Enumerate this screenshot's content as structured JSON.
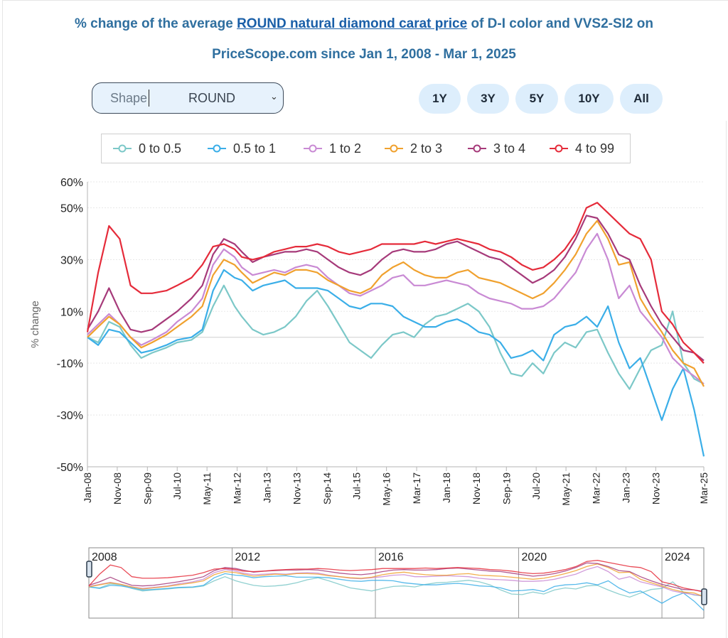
{
  "title": {
    "prefix": "% change of the average ",
    "link": "ROUND natural diamond carat price",
    "suffix": " of D-I color and VVS2-SI2 on",
    "line2": "PriceScope.com since Jan 1, 2008 - Mar 1, 2025"
  },
  "shape_select": {
    "label": "Shape",
    "value": "ROUND"
  },
  "range_buttons": [
    "1Y",
    "3Y",
    "5Y",
    "10Y",
    "All"
  ],
  "colors": {
    "series": [
      "#7cc8c8",
      "#3aaee8",
      "#c98ad4",
      "#f0a12e",
      "#a63a7a",
      "#e52b3a"
    ],
    "accent": "#2f6f9f"
  },
  "chart_data": {
    "type": "line",
    "title": "% change of the average ROUND natural diamond carat price of D-I color and VVS2-SI2 on PriceScope.com since Jan 1, 2008 - Mar 1, 2025",
    "ylabel": "% change",
    "xlabel": "",
    "ylim": [
      -50,
      60
    ],
    "xlim": [
      2008.0,
      2025.17
    ],
    "y_ticks": [
      60,
      50,
      30,
      10,
      -10,
      -30,
      -50
    ],
    "y_tick_labels": [
      "60%",
      "50%",
      "30%",
      "10%",
      "-10%",
      "-30%",
      "-50%"
    ],
    "x_ticks": [
      {
        "label": "Jan-08",
        "x": 2008.0
      },
      {
        "label": "Nov-08",
        "x": 2008.83
      },
      {
        "label": "Sep-09",
        "x": 2009.67
      },
      {
        "label": "Jul-10",
        "x": 2010.5
      },
      {
        "label": "May-11",
        "x": 2011.33
      },
      {
        "label": "Mar-12",
        "x": 2012.17
      },
      {
        "label": "Jan-13",
        "x": 2013.0
      },
      {
        "label": "Nov-13",
        "x": 2013.83
      },
      {
        "label": "Sep-14",
        "x": 2014.67
      },
      {
        "label": "Jul-15",
        "x": 2015.5
      },
      {
        "label": "May-16",
        "x": 2016.33
      },
      {
        "label": "Mar-17",
        "x": 2017.17
      },
      {
        "label": "Jan-18",
        "x": 2018.0
      },
      {
        "label": "Nov-18",
        "x": 2018.83
      },
      {
        "label": "Sep-19",
        "x": 2019.67
      },
      {
        "label": "Jul-20",
        "x": 2020.5
      },
      {
        "label": "May-21",
        "x": 2021.33
      },
      {
        "label": "Mar-22",
        "x": 2022.17
      },
      {
        "label": "Jan-23",
        "x": 2023.0
      },
      {
        "label": "Nov-23",
        "x": 2023.83
      },
      {
        "label": "Mar-25",
        "x": 2025.17
      }
    ],
    "legend_position": "top",
    "navigator_labels": [
      "2008",
      "2012",
      "2016",
      "2020",
      "2024"
    ],
    "navigator_years": [
      2008,
      2012,
      2016,
      2020,
      2024
    ],
    "series": [
      {
        "name": "0 to 0.5",
        "x": [
          2008.0,
          2008.3,
          2008.6,
          2008.9,
          2009.2,
          2009.5,
          2009.8,
          2010.2,
          2010.5,
          2010.9,
          2011.2,
          2011.5,
          2011.8,
          2012.1,
          2012.3,
          2012.6,
          2012.9,
          2013.2,
          2013.5,
          2013.8,
          2014.1,
          2014.4,
          2014.7,
          2015.0,
          2015.3,
          2015.6,
          2015.9,
          2016.2,
          2016.5,
          2016.8,
          2017.1,
          2017.4,
          2017.7,
          2018.0,
          2018.3,
          2018.6,
          2018.9,
          2019.2,
          2019.5,
          2019.8,
          2020.1,
          2020.4,
          2020.7,
          2021.0,
          2021.3,
          2021.6,
          2021.9,
          2022.2,
          2022.5,
          2022.8,
          2023.1,
          2023.4,
          2023.7,
          2024.0,
          2024.3,
          2024.6,
          2024.9,
          2025.17
        ],
        "values": [
          0,
          -2,
          6,
          4,
          -3,
          -8,
          -6,
          -4,
          -2,
          -1,
          2,
          12,
          20,
          12,
          8,
          3,
          1,
          2,
          4,
          8,
          14,
          18,
          12,
          5,
          -2,
          -5,
          -8,
          -3,
          1,
          2,
          0,
          5,
          8,
          9,
          11,
          13,
          10,
          4,
          -6,
          -14,
          -15,
          -10,
          -14,
          -6,
          -2,
          -4,
          2,
          3,
          -6,
          -14,
          -20,
          -12,
          -5,
          -3,
          10,
          -10,
          -16,
          -18
        ]
      },
      {
        "name": "0.5 to 1",
        "x": [
          2008.0,
          2008.3,
          2008.6,
          2008.9,
          2009.2,
          2009.5,
          2009.8,
          2010.2,
          2010.5,
          2010.9,
          2011.2,
          2011.5,
          2011.8,
          2012.1,
          2012.3,
          2012.6,
          2012.9,
          2013.2,
          2013.5,
          2013.8,
          2014.1,
          2014.4,
          2014.7,
          2015.0,
          2015.3,
          2015.6,
          2015.9,
          2016.2,
          2016.5,
          2016.8,
          2017.1,
          2017.4,
          2017.7,
          2018.0,
          2018.3,
          2018.6,
          2018.9,
          2019.2,
          2019.5,
          2019.8,
          2020.1,
          2020.4,
          2020.7,
          2021.0,
          2021.3,
          2021.6,
          2021.9,
          2022.2,
          2022.5,
          2022.8,
          2023.1,
          2023.4,
          2023.7,
          2024.0,
          2024.3,
          2024.6,
          2024.9,
          2025.17
        ],
        "values": [
          0,
          -3,
          3,
          2,
          -2,
          -6,
          -5,
          -3,
          -1,
          0,
          3,
          18,
          26,
          23,
          22,
          18,
          20,
          21,
          22,
          19,
          19,
          19,
          18,
          15,
          12,
          11,
          13,
          13,
          12,
          8,
          6,
          4,
          4,
          6,
          7,
          5,
          2,
          1,
          -2,
          -8,
          -7,
          -5,
          -9,
          1,
          4,
          5,
          8,
          4,
          12,
          -2,
          -12,
          -8,
          -20,
          -32,
          -20,
          -12,
          -28,
          -46
        ]
      },
      {
        "name": "1 to 2",
        "x": [
          2008.0,
          2008.3,
          2008.6,
          2008.9,
          2009.2,
          2009.5,
          2009.8,
          2010.2,
          2010.5,
          2010.9,
          2011.2,
          2011.5,
          2011.8,
          2012.1,
          2012.3,
          2012.6,
          2012.9,
          2013.2,
          2013.5,
          2013.8,
          2014.1,
          2014.4,
          2014.7,
          2015.0,
          2015.3,
          2015.6,
          2015.9,
          2016.2,
          2016.5,
          2016.8,
          2017.1,
          2017.4,
          2017.7,
          2018.0,
          2018.3,
          2018.6,
          2018.9,
          2019.2,
          2019.5,
          2019.8,
          2020.1,
          2020.4,
          2020.7,
          2021.0,
          2021.3,
          2021.6,
          2021.9,
          2022.2,
          2022.5,
          2022.8,
          2023.1,
          2023.4,
          2023.7,
          2024.0,
          2024.3,
          2024.6,
          2024.9,
          2025.17
        ],
        "values": [
          1,
          5,
          9,
          5,
          0,
          -3,
          -1,
          2,
          6,
          10,
          15,
          28,
          34,
          31,
          27,
          24,
          25,
          26,
          25,
          27,
          28,
          27,
          23,
          20,
          17,
          16,
          18,
          20,
          23,
          24,
          20,
          20,
          21,
          22,
          21,
          20,
          17,
          15,
          14,
          13,
          11,
          11,
          12,
          15,
          20,
          25,
          34,
          40,
          30,
          15,
          20,
          10,
          5,
          0,
          -8,
          -12,
          -15,
          -18
        ]
      },
      {
        "name": "2 to 3",
        "x": [
          2008.0,
          2008.3,
          2008.6,
          2008.9,
          2009.2,
          2009.5,
          2009.8,
          2010.2,
          2010.5,
          2010.9,
          2011.2,
          2011.5,
          2011.8,
          2012.1,
          2012.3,
          2012.6,
          2012.9,
          2013.2,
          2013.5,
          2013.8,
          2014.1,
          2014.4,
          2014.7,
          2015.0,
          2015.3,
          2015.6,
          2015.9,
          2016.2,
          2016.5,
          2016.8,
          2017.1,
          2017.4,
          2017.7,
          2018.0,
          2018.3,
          2018.6,
          2018.9,
          2019.2,
          2019.5,
          2019.8,
          2020.1,
          2020.4,
          2020.7,
          2021.0,
          2021.3,
          2021.6,
          2021.9,
          2022.2,
          2022.5,
          2022.8,
          2023.1,
          2023.4,
          2023.7,
          2024.0,
          2024.3,
          2024.6,
          2024.9,
          2025.17
        ],
        "values": [
          0,
          4,
          8,
          5,
          0,
          -4,
          -2,
          1,
          4,
          8,
          12,
          24,
          30,
          28,
          25,
          21,
          23,
          25,
          24,
          26,
          26,
          25,
          22,
          20,
          18,
          17,
          19,
          24,
          27,
          29,
          26,
          24,
          23,
          23,
          25,
          26,
          23,
          22,
          21,
          19,
          17,
          15,
          17,
          21,
          26,
          32,
          40,
          45,
          38,
          28,
          29,
          15,
          8,
          2,
          -5,
          -10,
          -12,
          -19
        ]
      },
      {
        "name": "3 to 4",
        "x": [
          2008.0,
          2008.3,
          2008.6,
          2008.9,
          2009.2,
          2009.5,
          2009.8,
          2010.2,
          2010.5,
          2010.9,
          2011.2,
          2011.5,
          2011.8,
          2012.1,
          2012.3,
          2012.6,
          2012.9,
          2013.2,
          2013.5,
          2013.8,
          2014.1,
          2014.4,
          2014.7,
          2015.0,
          2015.3,
          2015.6,
          2015.9,
          2016.2,
          2016.5,
          2016.8,
          2017.1,
          2017.4,
          2017.7,
          2018.0,
          2018.3,
          2018.6,
          2018.9,
          2019.2,
          2019.5,
          2019.8,
          2020.1,
          2020.4,
          2020.7,
          2021.0,
          2021.3,
          2021.6,
          2021.9,
          2022.2,
          2022.5,
          2022.8,
          2023.1,
          2023.4,
          2023.7,
          2024.0,
          2024.3,
          2024.6,
          2024.9,
          2025.17
        ],
        "values": [
          3,
          10,
          19,
          10,
          3,
          2,
          3,
          7,
          10,
          15,
          20,
          32,
          38,
          36,
          33,
          29,
          31,
          32,
          33,
          33,
          34,
          33,
          30,
          27,
          25,
          24,
          26,
          30,
          33,
          34,
          33,
          33,
          34,
          36,
          37,
          35,
          33,
          31,
          30,
          27,
          24,
          21,
          23,
          26,
          31,
          38,
          47,
          46,
          40,
          32,
          30,
          20,
          12,
          5,
          0,
          -5,
          -6,
          -9
        ]
      },
      {
        "name": "4 to 99",
        "x": [
          2008.0,
          2008.3,
          2008.6,
          2008.9,
          2009.2,
          2009.5,
          2009.8,
          2010.2,
          2010.5,
          2010.9,
          2011.2,
          2011.5,
          2011.8,
          2012.1,
          2012.3,
          2012.6,
          2012.9,
          2013.2,
          2013.5,
          2013.8,
          2014.1,
          2014.4,
          2014.7,
          2015.0,
          2015.3,
          2015.6,
          2015.9,
          2016.2,
          2016.5,
          2016.8,
          2017.1,
          2017.4,
          2017.7,
          2018.0,
          2018.3,
          2018.6,
          2018.9,
          2019.2,
          2019.5,
          2019.8,
          2020.1,
          2020.4,
          2020.7,
          2021.0,
          2021.3,
          2021.6,
          2021.9,
          2022.2,
          2022.5,
          2022.8,
          2023.1,
          2023.4,
          2023.7,
          2024.0,
          2024.3,
          2024.6,
          2024.9,
          2025.17
        ],
        "values": [
          2,
          25,
          43,
          38,
          20,
          17,
          17,
          18,
          20,
          23,
          28,
          35,
          36,
          34,
          31,
          30,
          31,
          33,
          34,
          35,
          35,
          36,
          35,
          33,
          32,
          33,
          34,
          36,
          36,
          36,
          36,
          37,
          36,
          37,
          38,
          37,
          36,
          34,
          33,
          31,
          28,
          26,
          27,
          30,
          34,
          40,
          50,
          52,
          48,
          44,
          40,
          38,
          30,
          10,
          5,
          -2,
          -6,
          -10
        ]
      }
    ]
  }
}
